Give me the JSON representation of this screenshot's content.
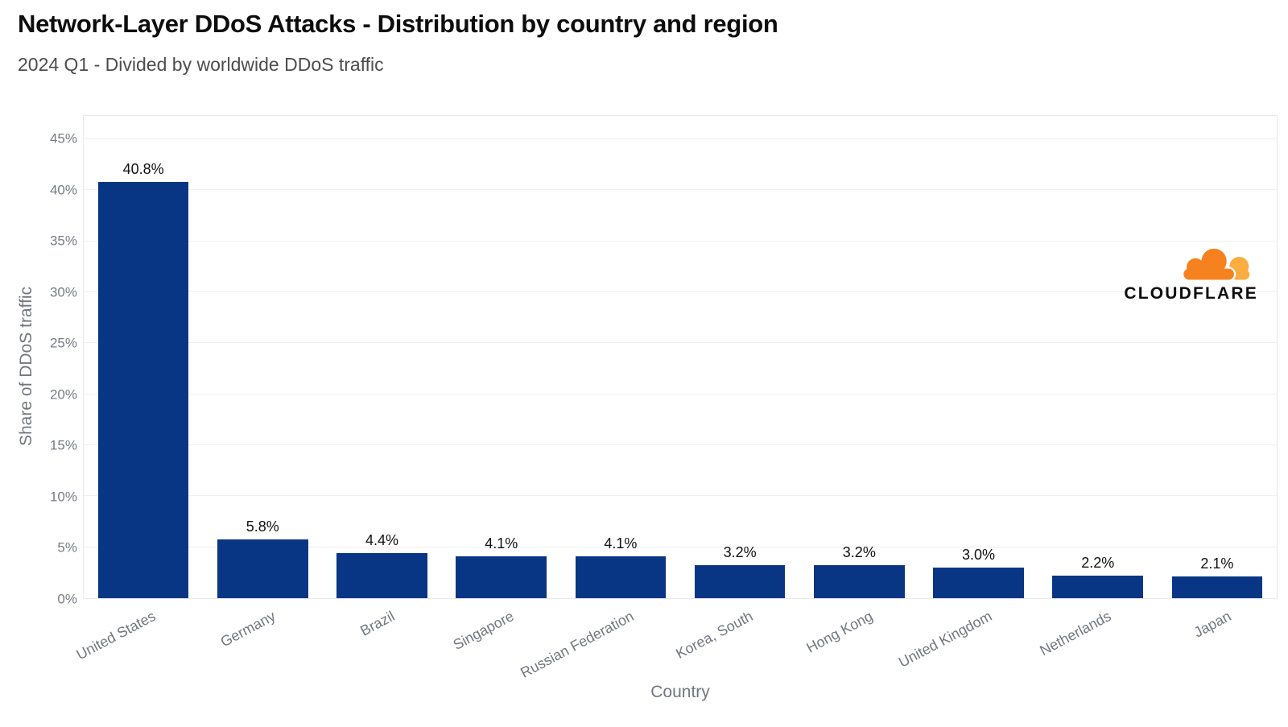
{
  "header": {
    "title": "Network-Layer DDoS Attacks - Distribution by country and region",
    "subtitle": "2024 Q1 - Divided by worldwide DDoS traffic"
  },
  "branding": {
    "logo_text": "CLOUDFLARE",
    "cloud_front_color": "#F6821F",
    "cloud_back_color": "#FBAD41",
    "text_color": "#0d0d0d"
  },
  "chart_data": {
    "type": "bar",
    "title": "Network-Layer DDoS Attacks - Distribution by country and region",
    "subtitle": "2024 Q1 - Divided by worldwide DDoS traffic",
    "categories": [
      "United States",
      "Germany",
      "Brazil",
      "Singapore",
      "Russian Federation",
      "Korea, South",
      "Hong Kong",
      "United Kingdom",
      "Netherlands",
      "Japan"
    ],
    "values": [
      40.8,
      5.8,
      4.4,
      4.1,
      4.1,
      3.2,
      3.2,
      3.0,
      2.2,
      2.1
    ],
    "value_labels": [
      "40.8%",
      "5.8%",
      "4.4%",
      "4.1%",
      "4.1%",
      "3.2%",
      "3.2%",
      "3.0%",
      "2.2%",
      "2.1%"
    ],
    "xlabel": "Country",
    "ylabel": "Share of DDoS traffic",
    "ylim": [
      0,
      47.3
    ],
    "yticks": [
      0,
      5,
      10,
      15,
      20,
      25,
      30,
      35,
      40,
      45
    ],
    "ytick_labels": [
      "0%",
      "5%",
      "10%",
      "15%",
      "20%",
      "25%",
      "30%",
      "35%",
      "40%",
      "45%"
    ],
    "bar_color": "#093684",
    "grid": true,
    "gridline_color": "#efefef",
    "legend": "none"
  }
}
